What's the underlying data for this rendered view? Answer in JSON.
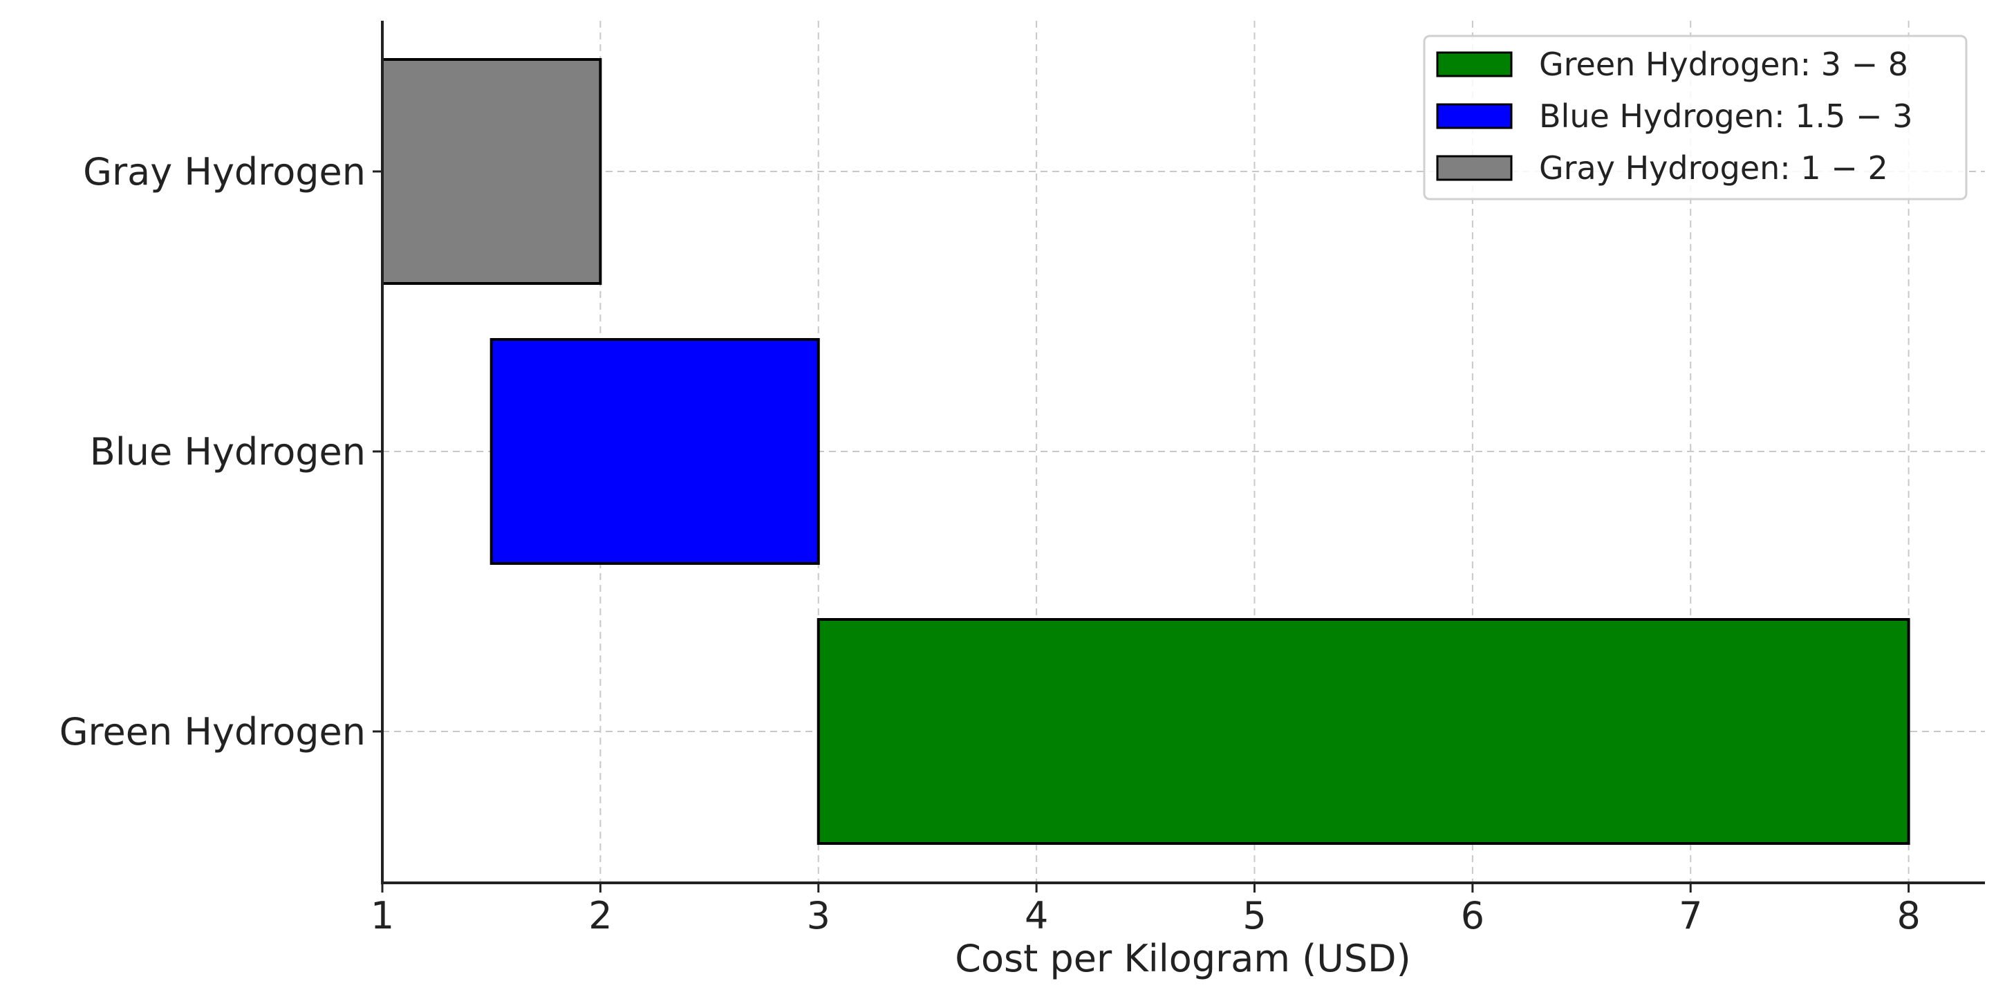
{
  "chart_data": {
    "type": "bar",
    "orientation": "horizontal-range",
    "title": "",
    "xlabel": "Cost per Kilogram (USD)",
    "ylabel": "",
    "xlim": [
      1,
      8.35
    ],
    "xticks": [
      "1",
      "2",
      "3",
      "4",
      "5",
      "6",
      "7",
      "8"
    ],
    "grid": true,
    "legend_position": "top-right",
    "categories": [
      "Green Hydrogen",
      "Blue Hydrogen",
      "Gray Hydrogen"
    ],
    "series": [
      {
        "name": "Green Hydrogen: 3 − 8",
        "category": "Green Hydrogen",
        "start": 3,
        "end": 8,
        "color": "#008000"
      },
      {
        "name": "Blue Hydrogen: 1.5 − 3",
        "category": "Blue Hydrogen",
        "start": 1.5,
        "end": 3,
        "color": "#0000ff"
      },
      {
        "name": "Gray Hydrogen: 1 − 2",
        "category": "Gray Hydrogen",
        "start": 1,
        "end": 2,
        "color": "#808080"
      }
    ]
  }
}
